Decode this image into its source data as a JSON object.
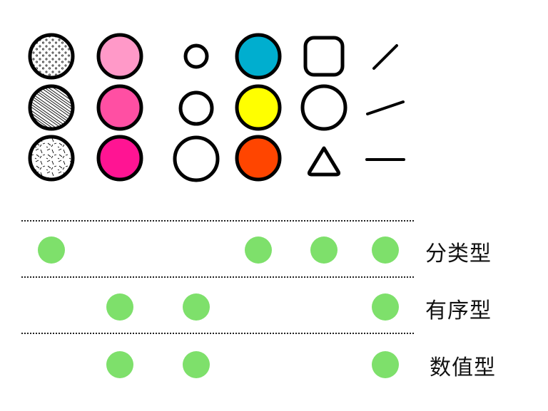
{
  "palette": {
    "stroke": "#000000",
    "pink_light": "#FF99C8",
    "pink_mid": "#FF4FA3",
    "pink_deep": "#FF1493",
    "cyan": "#00AECF",
    "yellow": "#FFFF00",
    "orange_red": "#FF4500",
    "match_green": "#7EE06B"
  },
  "channels": [
    {
      "name": "texture",
      "items": [
        "dots-texture-icon",
        "hatch-texture-icon",
        "scatter-texture-icon"
      ]
    },
    {
      "name": "color-value",
      "items": [
        "light-pink",
        "medium-pink",
        "deep-pink"
      ]
    },
    {
      "name": "size",
      "items": [
        "small-circle",
        "medium-circle",
        "large-circle"
      ]
    },
    {
      "name": "color-hue",
      "items": [
        "cyan",
        "yellow",
        "orange-red"
      ]
    },
    {
      "name": "shape",
      "items": [
        "rounded-square-icon",
        "circle-icon",
        "triangle-icon"
      ]
    },
    {
      "name": "orientation",
      "items": [
        "steep-line-icon",
        "slanted-line-icon",
        "horizontal-line-icon"
      ]
    }
  ],
  "rows": [
    {
      "label": "分类型",
      "marks": [
        true,
        false,
        false,
        true,
        true,
        true
      ]
    },
    {
      "label": "有序型",
      "marks": [
        false,
        true,
        true,
        false,
        false,
        true
      ]
    },
    {
      "label": "数值型",
      "marks": [
        false,
        true,
        true,
        false,
        false,
        true
      ]
    }
  ]
}
